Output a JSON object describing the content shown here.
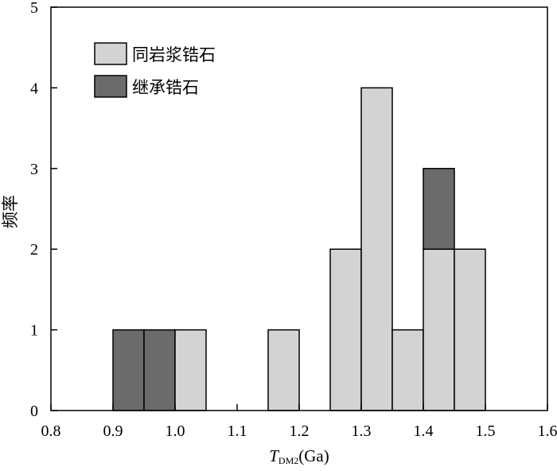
{
  "chart_data": {
    "type": "bar",
    "stacked": true,
    "xlabel": {
      "main": "T",
      "subscript": "DM2",
      "unit": "(Ga)"
    },
    "ylabel": "频率",
    "xlim": [
      0.8,
      1.6
    ],
    "ylim": [
      0,
      5
    ],
    "xticks": [
      "0.8",
      "0.9",
      "1.0",
      "1.1",
      "1.2",
      "1.3",
      "1.4",
      "1.5",
      "1.6"
    ],
    "yticks": [
      "0",
      "1",
      "2",
      "3",
      "4",
      "5"
    ],
    "bin_width": 0.05,
    "bins": [
      0.9,
      0.95,
      1.0,
      1.15,
      1.25,
      1.3,
      1.35,
      1.4,
      1.45
    ],
    "series": [
      {
        "name": "同岩浆锆石",
        "color": "#d3d3d3",
        "values": [
          0,
          0,
          1,
          1,
          2,
          4,
          1,
          2,
          2
        ]
      },
      {
        "name": "继承锆石",
        "color": "#6b6b6b",
        "values": [
          1,
          1,
          0,
          0,
          0,
          0,
          0,
          1,
          0
        ]
      }
    ],
    "legend_position": "top-left",
    "grid": false
  }
}
